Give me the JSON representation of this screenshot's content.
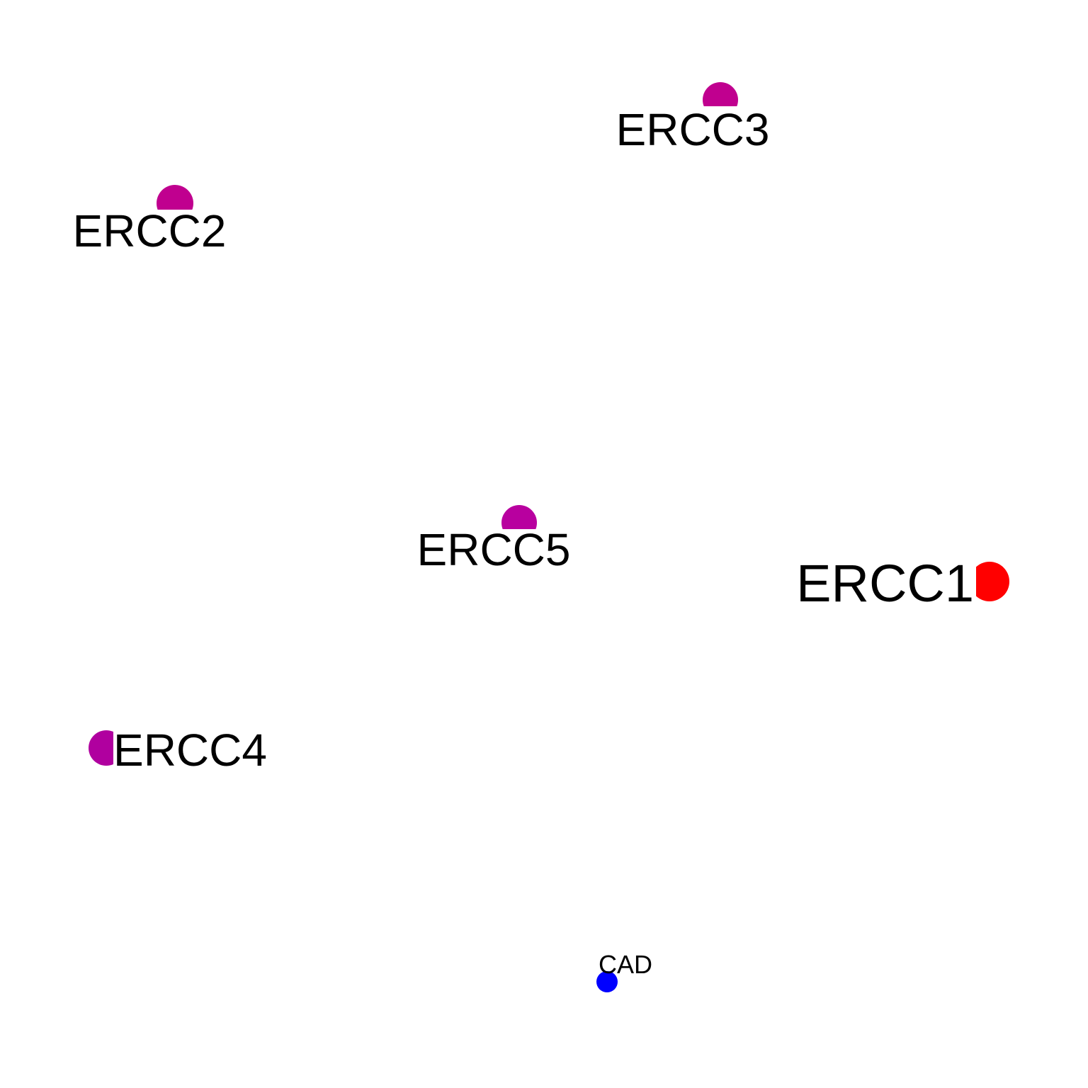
{
  "nodes": [
    {
      "id": "ERCC3",
      "label": "ERCC3",
      "color": "#c0008f"
    },
    {
      "id": "ERCC2",
      "label": "ERCC2",
      "color": "#c0008f"
    },
    {
      "id": "ERCC5",
      "label": "ERCC5",
      "color": "#b8009f"
    },
    {
      "id": "ERCC1",
      "label": "ERCC1",
      "color": "#ff0000"
    },
    {
      "id": "ERCC4",
      "label": "ERCC4",
      "color": "#b0009f"
    },
    {
      "id": "CAD",
      "label": "CAD",
      "color": "#0000ff"
    }
  ]
}
